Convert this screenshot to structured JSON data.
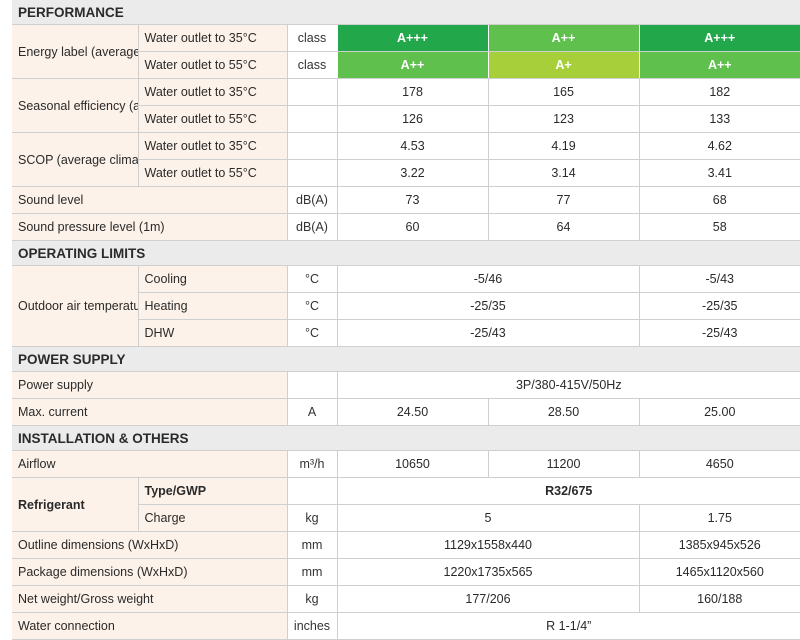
{
  "sections": {
    "performance": "PERFORMANCE",
    "operating_limits": "OPERATING LIMITS",
    "power_supply": "POWER SUPPLY",
    "installation": "INSTALLATION & OTHERS"
  },
  "performance": {
    "energy_label": {
      "label": "Energy label (average climate)",
      "rows": [
        {
          "condition": "Water outlet to 35°C",
          "unit": "class",
          "values": [
            "A+++",
            "A++",
            "A+++"
          ]
        },
        {
          "condition": "Water outlet to 55°C",
          "unit": "class",
          "values": [
            "A++",
            "A+",
            "A++"
          ]
        }
      ]
    },
    "seasonal_efficiency": {
      "label": "Seasonal efficiency (average climate)",
      "rows": [
        {
          "condition": "Water outlet to 35°C",
          "unit": "",
          "values": [
            "178",
            "165",
            "182"
          ]
        },
        {
          "condition": "Water outlet to 55°C",
          "unit": "",
          "values": [
            "126",
            "123",
            "133"
          ]
        }
      ]
    },
    "scop": {
      "label": "SCOP (average climate)",
      "rows": [
        {
          "condition": "Water outlet to 35°C",
          "unit": "",
          "values": [
            "4.53",
            "4.19",
            "4.62"
          ]
        },
        {
          "condition": "Water outlet to 55°C",
          "unit": "",
          "values": [
            "3.22",
            "3.14",
            "3.41"
          ]
        }
      ]
    },
    "sound_level": {
      "label": "Sound level",
      "unit": "dB(A)",
      "values": [
        "73",
        "77",
        "68"
      ]
    },
    "sound_pressure": {
      "label": "Sound pressure level (1m)",
      "unit": "dB(A)",
      "values": [
        "60",
        "64",
        "58"
      ]
    }
  },
  "operating_limits": {
    "label": "Outdoor air temperature",
    "rows": [
      {
        "mode": "Cooling",
        "unit": "°C",
        "shared": "-5/46",
        "last": "-5/43"
      },
      {
        "mode": "Heating",
        "unit": "°C",
        "shared": "-25/35",
        "last": "-25/35"
      },
      {
        "mode": "DHW",
        "unit": "°C",
        "shared": "-25/43",
        "last": "-25/43"
      }
    ]
  },
  "power_supply": {
    "supply": {
      "label": "Power supply",
      "unit": "",
      "value": "3P/380-415V/50Hz"
    },
    "max_current": {
      "label": "Max. current",
      "unit": "A",
      "values": [
        "24.50",
        "28.50",
        "25.00"
      ]
    }
  },
  "installation": {
    "airflow": {
      "label": "Airflow",
      "unit": "m³/h",
      "values": [
        "10650",
        "11200",
        "4650"
      ]
    },
    "refrigerant": {
      "label": "Refrigerant",
      "type": {
        "sub": "Type/GWP",
        "unit": "",
        "value": "R32/675"
      },
      "charge": {
        "sub": "Charge",
        "unit": "kg",
        "shared": "5",
        "last": "1.75"
      }
    },
    "outline": {
      "label": "Outline dimensions (WxHxD)",
      "unit": "mm",
      "shared": "1129x1558x440",
      "last": "1385x945x526"
    },
    "package": {
      "label": "Package dimensions (WxHxD)",
      "unit": "mm",
      "shared": "1220x1735x565",
      "last": "1465x1120x560"
    },
    "weight": {
      "label": "Net weight/Gross weight",
      "unit": "kg",
      "shared": "177/206",
      "last": "160/188"
    },
    "water": {
      "label": "Water connection",
      "unit": "inches",
      "value": "R 1-1/4”"
    }
  }
}
